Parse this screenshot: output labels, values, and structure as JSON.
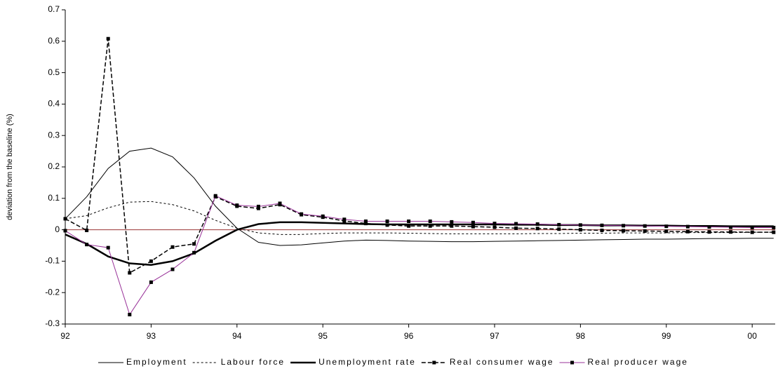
{
  "chart_data": {
    "type": "line",
    "y_label": "deviation from the baseline (%)",
    "categories": [
      "92",
      null,
      null,
      null,
      "93",
      null,
      null,
      null,
      "94",
      null,
      null,
      null,
      "95",
      null,
      null,
      null,
      "96",
      null,
      null,
      null,
      "97",
      null,
      null,
      null,
      "98",
      null,
      null,
      null,
      "99",
      null,
      null,
      null,
      "00",
      null
    ],
    "ylim": [
      -0.3,
      0.7
    ],
    "yticks": [
      -0.3,
      -0.2,
      -0.1,
      0,
      0.1,
      0.2,
      0.3,
      0.4,
      0.5,
      0.6,
      0.7
    ],
    "zero_line_color": "#993333",
    "legend": "bottom",
    "series": [
      {
        "name": "Employment",
        "color": "#000000",
        "width": 1,
        "dash": "solid",
        "marker": "none",
        "values": [
          0.035,
          0.105,
          0.195,
          0.25,
          0.26,
          0.232,
          0.165,
          0.075,
          0.005,
          -0.04,
          -0.05,
          -0.048,
          -0.042,
          -0.036,
          -0.033,
          -0.034,
          -0.036,
          -0.037,
          -0.038,
          -0.038,
          -0.037,
          -0.036,
          -0.035,
          -0.034,
          -0.033,
          -0.032,
          -0.031,
          -0.03,
          -0.03,
          -0.029,
          -0.028,
          -0.028,
          -0.027,
          -0.027
        ]
      },
      {
        "name": "Labour force",
        "color": "#000000",
        "width": 1,
        "dash": "dotted",
        "marker": "none",
        "values": [
          0.035,
          0.045,
          0.07,
          0.088,
          0.09,
          0.08,
          0.06,
          0.03,
          0.005,
          -0.01,
          -0.015,
          -0.015,
          -0.012,
          -0.01,
          -0.01,
          -0.01,
          -0.011,
          -0.012,
          -0.013,
          -0.013,
          -0.013,
          -0.013,
          -0.012,
          -0.012,
          -0.011,
          -0.011,
          -0.01,
          -0.01,
          -0.01,
          -0.009,
          -0.009,
          -0.009,
          -0.008,
          -0.008
        ]
      },
      {
        "name": "Unemployment rate",
        "color": "#000000",
        "width": 2.5,
        "dash": "solid",
        "marker": "none",
        "values": [
          -0.015,
          -0.045,
          -0.085,
          -0.107,
          -0.112,
          -0.1,
          -0.075,
          -0.035,
          0,
          0.018,
          0.024,
          0.024,
          0.022,
          0.02,
          0.018,
          0.017,
          0.017,
          0.017,
          0.017,
          0.017,
          0.017,
          0.016,
          0.016,
          0.015,
          0.015,
          0.014,
          0.014,
          0.013,
          0.013,
          0.012,
          0.012,
          0.011,
          0.011,
          0.011
        ]
      },
      {
        "name": "Real consumer wage",
        "color": "#000000",
        "width": 1.5,
        "dash": "dashed",
        "marker": "square",
        "values": [
          0.035,
          -0.002,
          0.608,
          -0.137,
          -0.1,
          -0.055,
          -0.045,
          0.105,
          0.075,
          0.068,
          0.08,
          0.048,
          0.04,
          0.028,
          0.02,
          0.015,
          0.012,
          0.012,
          0.012,
          0.01,
          0.008,
          0.005,
          0.004,
          0.002,
          0,
          -0.002,
          -0.003,
          -0.004,
          -0.005,
          -0.006,
          -0.007,
          -0.007,
          -0.008,
          -0.008
        ]
      },
      {
        "name": "Real producer wage",
        "color": "#993399",
        "width": 1,
        "dash": "solid",
        "marker": "square",
        "values": [
          -0.003,
          -0.047,
          -0.057,
          -0.27,
          -0.167,
          -0.126,
          -0.073,
          0.108,
          0.078,
          0.074,
          0.084,
          0.05,
          0.043,
          0.033,
          0.027,
          0.027,
          0.027,
          0.027,
          0.025,
          0.023,
          0.02,
          0.019,
          0.018,
          0.016,
          0.015,
          0.014,
          0.013,
          0.012,
          0.011,
          0.01,
          0.009,
          0.008,
          0.007,
          0.007
        ]
      }
    ]
  }
}
